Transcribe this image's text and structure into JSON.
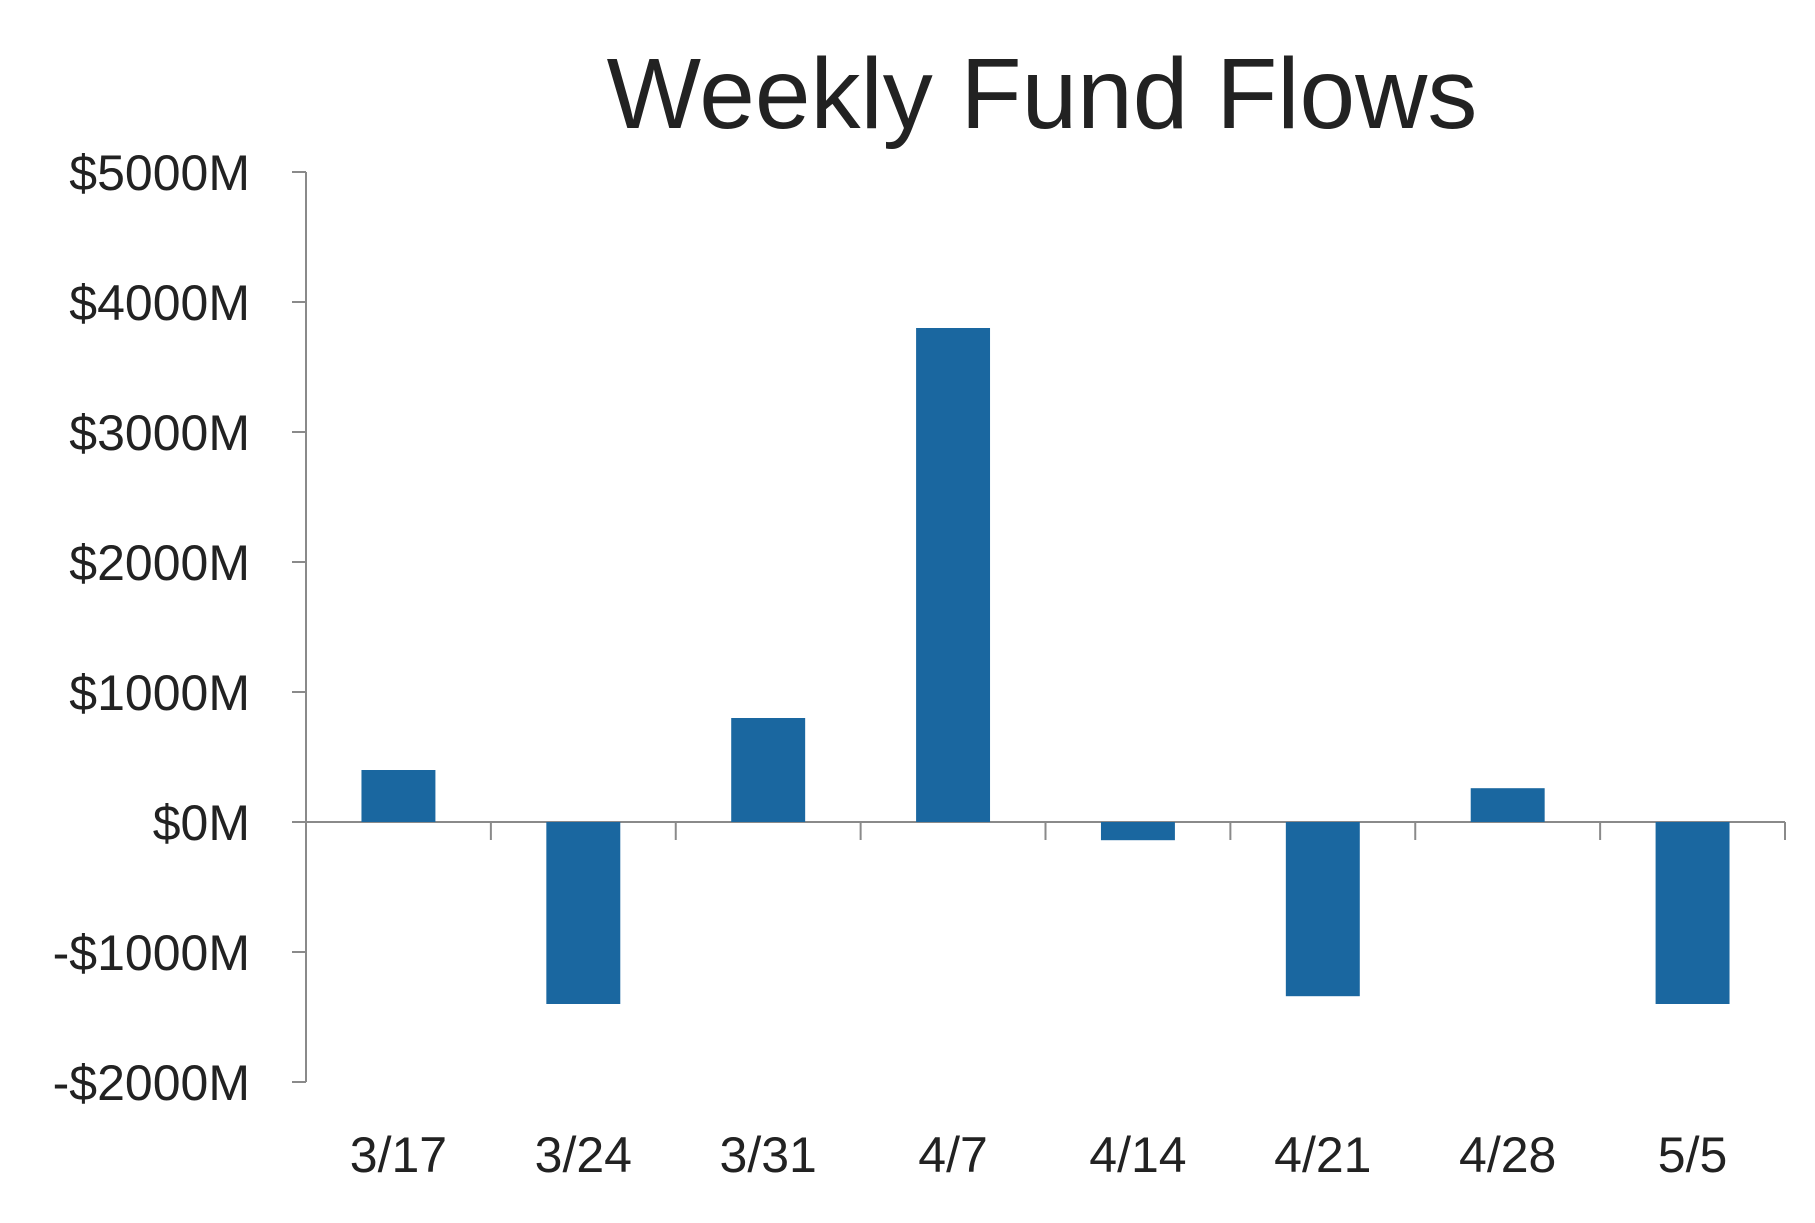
{
  "chart_data": {
    "type": "bar",
    "title": "Weekly Fund Flows",
    "xlabel": "",
    "ylabel": "",
    "categories": [
      "3/17",
      "3/24",
      "3/31",
      "4/7",
      "4/14",
      "4/21",
      "4/28",
      "5/5"
    ],
    "values": [
      400,
      -1400,
      800,
      3800,
      -140,
      -1340,
      260,
      -1400
    ],
    "ylim": [
      -2000,
      5000
    ],
    "yticks": [
      5000,
      4000,
      3000,
      2000,
      1000,
      0,
      -1000,
      -2000
    ],
    "ytick_labels": [
      "$5000M",
      "$4000M",
      "$3000M",
      "$2000M",
      "$1000M",
      "$0M",
      "-$1000M",
      "-$2000M"
    ],
    "bar_color": "#1a67a0",
    "grid": false,
    "legend": "none"
  }
}
